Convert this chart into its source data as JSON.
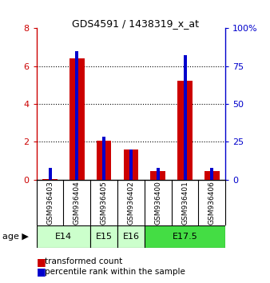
{
  "title": "GDS4591 / 1438319_x_at",
  "samples": [
    "GSM936403",
    "GSM936404",
    "GSM936405",
    "GSM936402",
    "GSM936400",
    "GSM936401",
    "GSM936406"
  ],
  "transformed_count": [
    0.05,
    6.4,
    2.05,
    1.6,
    0.45,
    5.25,
    0.45
  ],
  "percentile_rank_pct": [
    8.0,
    85.0,
    28.5,
    20.0,
    8.0,
    82.0,
    8.0
  ],
  "age_groups": [
    {
      "label": "E14",
      "start": 0,
      "end": 2,
      "color": "#ccffcc"
    },
    {
      "label": "E15",
      "start": 2,
      "end": 3,
      "color": "#ccffcc"
    },
    {
      "label": "E16",
      "start": 3,
      "end": 4,
      "color": "#ccffcc"
    },
    {
      "label": "E17.5",
      "start": 4,
      "end": 7,
      "color": "#44dd44"
    }
  ],
  "ylim_left": [
    0,
    8
  ],
  "ylim_right": [
    0,
    100
  ],
  "yticks_left": [
    0,
    2,
    4,
    6,
    8
  ],
  "yticks_right": [
    0,
    25,
    50,
    75,
    100
  ],
  "bar_color_red": "#cc0000",
  "bar_color_blue": "#0000cc",
  "red_bar_width": 0.55,
  "blue_bar_width": 0.12,
  "bg_color_plot": "#ffffff",
  "bg_color_fig": "#ffffff",
  "legend_red": "transformed count",
  "legend_blue": "percentile rank within the sample",
  "sample_bg": "#d3d3d3",
  "grid_linestyle": ":",
  "grid_color": "#000000",
  "grid_linewidth": 0.8,
  "left_tick_color": "#cc0000",
  "right_tick_color": "#0000cc",
  "left_spine_color": "#cc0000",
  "right_spine_color": "#0000cc",
  "title_fontsize": 9,
  "tick_fontsize": 8,
  "sample_fontsize": 6.5,
  "age_fontsize": 8,
  "legend_fontsize": 7.5
}
